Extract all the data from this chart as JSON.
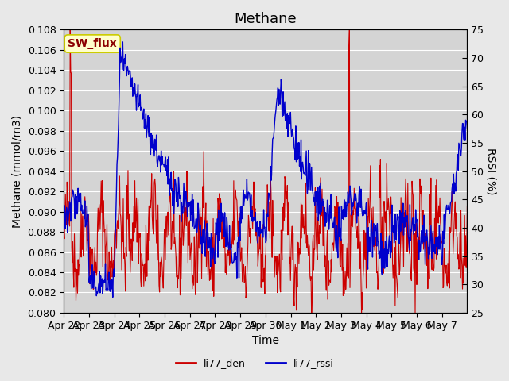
{
  "title": "Methane",
  "xlabel": "Time",
  "ylabel_left": "Methane (mmol/m3)",
  "ylabel_right": "RSSI (%)",
  "ylim_left": [
    0.08,
    0.108
  ],
  "ylim_right": [
    25,
    75
  ],
  "yticks_left": [
    0.08,
    0.082,
    0.084,
    0.086,
    0.088,
    0.09,
    0.092,
    0.094,
    0.096,
    0.098,
    0.1,
    0.102,
    0.104,
    0.106,
    0.108
  ],
  "yticks_right": [
    25,
    30,
    35,
    40,
    45,
    50,
    55,
    60,
    65,
    70,
    75
  ],
  "xtick_labels": [
    "Apr 22",
    "Apr 23",
    "Apr 24",
    "Apr 25",
    "Apr 26",
    "Apr 27",
    "Apr 28",
    "Apr 29",
    "Apr 30",
    "May 1",
    "May 2",
    "May 3",
    "May 4",
    "May 5",
    "May 6",
    "May 7"
  ],
  "xtick_positions": [
    0,
    1,
    2,
    3,
    4,
    5,
    6,
    7,
    8,
    9,
    10,
    11,
    12,
    13,
    14,
    15
  ],
  "color_red": "#cc0000",
  "color_blue": "#0000cc",
  "legend_label_red": "li77_den",
  "legend_label_blue": "li77_rssi",
  "annotation_text": "SW_flux",
  "annotation_bg": "#ffffcc",
  "annotation_border": "#cccc00",
  "bg_color": "#e8e8e8",
  "plot_bg_color": "#d4d4d4",
  "grid_color": "#ffffff",
  "title_fontsize": 13,
  "axis_fontsize": 10,
  "tick_fontsize": 9
}
